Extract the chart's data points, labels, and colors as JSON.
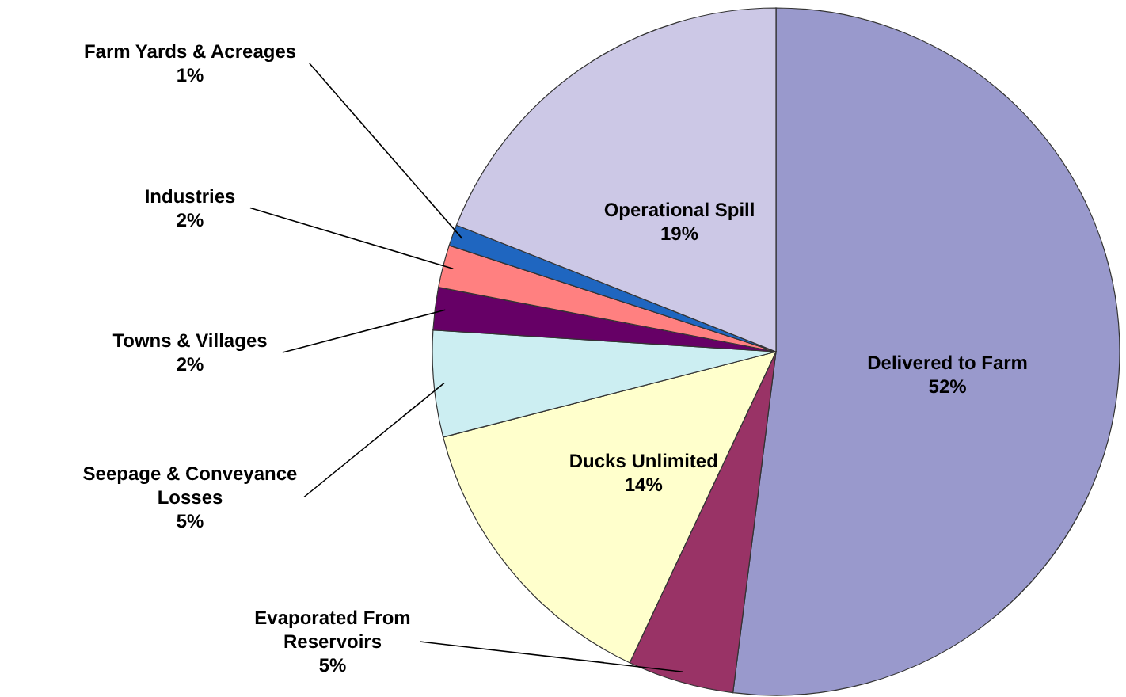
{
  "chart_data": {
    "type": "pie",
    "categories": [
      "Delivered to Farm",
      "Evaporated From Reservoirs",
      "Ducks Unlimited",
      "Seepage & Conveyance Losses",
      "Towns & Villages",
      "Industries",
      "Farm Yards & Acreages",
      "Operational Spill"
    ],
    "values": [
      52,
      5,
      14,
      5,
      2,
      2,
      1,
      19
    ],
    "value_labels": [
      "52%",
      "5%",
      "14%",
      "5%",
      "2%",
      "2%",
      "1%",
      "19%"
    ],
    "colors": [
      "#9999cc",
      "#993366",
      "#ffffcc",
      "#cceef2",
      "#660066",
      "#ff8080",
      "#1f66c0",
      "#ccc8e6"
    ]
  }
}
